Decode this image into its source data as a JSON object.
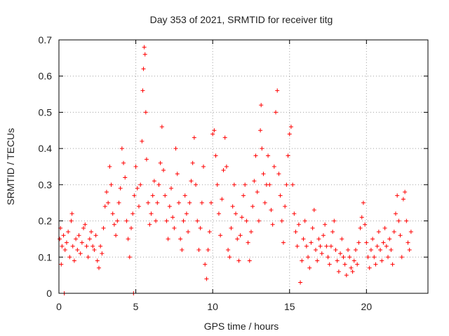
{
  "chart_data": {
    "type": "scatter",
    "title": "Day 353 of 2021, SRMTID for receiver titg",
    "xlabel": "GPS time / hours",
    "ylabel": "SRMTID / TECUs",
    "xlim": [
      0,
      24
    ],
    "ylim": [
      0,
      0.7
    ],
    "xticks": [
      0,
      5,
      10,
      15,
      20
    ],
    "xtick_labels": [
      "0",
      "5",
      "10",
      "15",
      "20"
    ],
    "yticks": [
      0,
      0.1,
      0.2,
      0.3,
      0.4,
      0.5,
      0.6,
      0.7
    ],
    "ytick_labels": [
      "0",
      "0.1",
      "0.2",
      "0.3",
      "0.4",
      "0.5",
      "0.6",
      "0.7"
    ],
    "grid": true,
    "marker": "plus",
    "color": "#ff0000",
    "series": [
      {
        "name": "SRMTID",
        "points": [
          [
            0.05,
            0.15
          ],
          [
            0.1,
            0.18
          ],
          [
            0.15,
            0.08
          ],
          [
            0.2,
            0.13
          ],
          [
            0.3,
            0.16
          ],
          [
            0.35,
            0.0
          ],
          [
            0.4,
            0.12
          ],
          [
            0.5,
            0.14
          ],
          [
            0.6,
            0.17
          ],
          [
            0.7,
            0.1
          ],
          [
            0.8,
            0.2
          ],
          [
            0.85,
            0.22
          ],
          [
            0.9,
            0.13
          ],
          [
            1.0,
            0.09
          ],
          [
            1.1,
            0.15
          ],
          [
            1.2,
            0.12
          ],
          [
            1.3,
            0.16
          ],
          [
            1.4,
            0.11
          ],
          [
            1.5,
            0.14
          ],
          [
            1.6,
            0.18
          ],
          [
            1.7,
            0.19
          ],
          [
            1.8,
            0.13
          ],
          [
            1.9,
            0.1
          ],
          [
            2.0,
            0.15
          ],
          [
            2.1,
            0.17
          ],
          [
            2.2,
            0.13
          ],
          [
            2.3,
            0.12
          ],
          [
            2.4,
            0.16
          ],
          [
            2.5,
            0.09
          ],
          [
            2.6,
            0.07
          ],
          [
            2.7,
            0.13
          ],
          [
            2.8,
            0.11
          ],
          [
            2.9,
            0.18
          ],
          [
            3.0,
            0.24
          ],
          [
            3.1,
            0.28
          ],
          [
            3.2,
            0.25
          ],
          [
            3.3,
            0.35
          ],
          [
            3.4,
            0.3
          ],
          [
            3.5,
            0.22
          ],
          [
            3.6,
            0.19
          ],
          [
            3.7,
            0.16
          ],
          [
            3.8,
            0.2
          ],
          [
            3.9,
            0.25
          ],
          [
            4.0,
            0.29
          ],
          [
            4.1,
            0.4
          ],
          [
            4.2,
            0.36
          ],
          [
            4.3,
            0.32
          ],
          [
            4.4,
            0.2
          ],
          [
            4.5,
            0.15
          ],
          [
            4.6,
            0.1
          ],
          [
            4.7,
            0.18
          ],
          [
            4.8,
            0.22
          ],
          [
            4.85,
            0.0
          ],
          [
            4.9,
            0.27
          ],
          [
            5.0,
            0.35
          ],
          [
            5.1,
            0.29
          ],
          [
            5.2,
            0.24
          ],
          [
            5.3,
            0.3
          ],
          [
            5.4,
            0.42
          ],
          [
            5.45,
            0.56
          ],
          [
            5.5,
            0.62
          ],
          [
            5.55,
            0.68
          ],
          [
            5.6,
            0.66
          ],
          [
            5.65,
            0.5
          ],
          [
            5.7,
            0.37
          ],
          [
            5.8,
            0.25
          ],
          [
            5.9,
            0.19
          ],
          [
            6.0,
            0.22
          ],
          [
            6.1,
            0.27
          ],
          [
            6.2,
            0.31
          ],
          [
            6.3,
            0.2
          ],
          [
            6.4,
            0.25
          ],
          [
            6.5,
            0.3
          ],
          [
            6.6,
            0.36
          ],
          [
            6.7,
            0.46
          ],
          [
            6.8,
            0.34
          ],
          [
            6.9,
            0.27
          ],
          [
            7.0,
            0.2
          ],
          [
            7.1,
            0.15
          ],
          [
            7.2,
            0.24
          ],
          [
            7.3,
            0.29
          ],
          [
            7.4,
            0.21
          ],
          [
            7.5,
            0.18
          ],
          [
            7.6,
            0.4
          ],
          [
            7.7,
            0.33
          ],
          [
            7.8,
            0.25
          ],
          [
            7.9,
            0.15
          ],
          [
            8.0,
            0.12
          ],
          [
            8.1,
            0.2
          ],
          [
            8.2,
            0.27
          ],
          [
            8.3,
            0.22
          ],
          [
            8.4,
            0.17
          ],
          [
            8.5,
            0.25
          ],
          [
            8.6,
            0.31
          ],
          [
            8.7,
            0.36
          ],
          [
            8.8,
            0.43
          ],
          [
            8.9,
            0.3
          ],
          [
            9.0,
            0.2
          ],
          [
            9.1,
            0.12
          ],
          [
            9.2,
            0.18
          ],
          [
            9.3,
            0.25
          ],
          [
            9.4,
            0.35
          ],
          [
            9.5,
            0.08
          ],
          [
            9.6,
            0.04
          ],
          [
            9.7,
            0.12
          ],
          [
            9.8,
            0.17
          ],
          [
            9.9,
            0.25
          ],
          [
            10.0,
            0.44
          ],
          [
            10.1,
            0.45
          ],
          [
            10.2,
            0.38
          ],
          [
            10.3,
            0.3
          ],
          [
            10.4,
            0.22
          ],
          [
            10.5,
            0.16
          ],
          [
            10.6,
            0.26
          ],
          [
            10.7,
            0.34
          ],
          [
            10.8,
            0.43
          ],
          [
            10.9,
            0.35
          ],
          [
            11.0,
            0.12
          ],
          [
            11.1,
            0.1
          ],
          [
            11.2,
            0.18
          ],
          [
            11.3,
            0.24
          ],
          [
            11.4,
            0.3
          ],
          [
            11.5,
            0.22
          ],
          [
            11.6,
            0.15
          ],
          [
            11.7,
            0.09
          ],
          [
            11.8,
            0.16
          ],
          [
            11.9,
            0.21
          ],
          [
            12.0,
            0.27
          ],
          [
            12.1,
            0.3
          ],
          [
            12.2,
            0.2
          ],
          [
            12.3,
            0.14
          ],
          [
            12.4,
            0.09
          ],
          [
            12.5,
            0.17
          ],
          [
            12.6,
            0.24
          ],
          [
            12.7,
            0.31
          ],
          [
            12.8,
            0.38
          ],
          [
            12.9,
            0.28
          ],
          [
            13.0,
            0.2
          ],
          [
            13.1,
            0.45
          ],
          [
            13.15,
            0.52
          ],
          [
            13.2,
            0.4
          ],
          [
            13.3,
            0.33
          ],
          [
            13.4,
            0.25
          ],
          [
            13.5,
            0.3
          ],
          [
            13.6,
            0.38
          ],
          [
            13.7,
            0.3
          ],
          [
            13.8,
            0.23
          ],
          [
            13.9,
            0.19
          ],
          [
            14.0,
            0.35
          ],
          [
            14.1,
            0.5
          ],
          [
            14.2,
            0.56
          ],
          [
            14.3,
            0.33
          ],
          [
            14.4,
            0.27
          ],
          [
            14.5,
            0.2
          ],
          [
            14.6,
            0.14
          ],
          [
            14.7,
            0.24
          ],
          [
            14.8,
            0.3
          ],
          [
            14.9,
            0.38
          ],
          [
            15.0,
            0.44
          ],
          [
            15.1,
            0.46
          ],
          [
            15.2,
            0.3
          ],
          [
            15.3,
            0.22
          ],
          [
            15.4,
            0.17
          ],
          [
            15.5,
            0.13
          ],
          [
            15.6,
            0.19
          ],
          [
            15.7,
            0.03
          ],
          [
            15.8,
            0.09
          ],
          [
            15.9,
            0.15
          ],
          [
            16.0,
            0.2
          ],
          [
            16.1,
            0.13
          ],
          [
            16.2,
            0.1
          ],
          [
            16.3,
            0.07
          ],
          [
            16.4,
            0.14
          ],
          [
            16.5,
            0.18
          ],
          [
            16.6,
            0.23
          ],
          [
            16.7,
            0.12
          ],
          [
            16.8,
            0.09
          ],
          [
            16.9,
            0.15
          ],
          [
            17.0,
            0.13
          ],
          [
            17.1,
            0.11
          ],
          [
            17.2,
            0.16
          ],
          [
            17.3,
            0.19
          ],
          [
            17.4,
            0.13
          ],
          [
            17.5,
            0.1
          ],
          [
            17.6,
            0.08
          ],
          [
            17.7,
            0.13
          ],
          [
            17.8,
            0.17
          ],
          [
            17.9,
            0.2
          ],
          [
            18.0,
            0.12
          ],
          [
            18.1,
            0.09
          ],
          [
            18.2,
            0.06
          ],
          [
            18.3,
            0.11
          ],
          [
            18.4,
            0.15
          ],
          [
            18.5,
            0.1
          ],
          [
            18.6,
            0.08
          ],
          [
            18.7,
            0.05
          ],
          [
            18.8,
            0.12
          ],
          [
            18.9,
            0.1
          ],
          [
            19.0,
            0.07
          ],
          [
            19.1,
            0.06
          ],
          [
            19.2,
            0.09
          ],
          [
            19.3,
            0.12
          ],
          [
            19.4,
            0.08
          ],
          [
            19.5,
            0.14
          ],
          [
            19.6,
            0.18
          ],
          [
            19.7,
            0.21
          ],
          [
            19.8,
            0.25
          ],
          [
            19.9,
            0.19
          ],
          [
            20.0,
            0.14
          ],
          [
            20.1,
            0.1
          ],
          [
            20.2,
            0.07
          ],
          [
            20.3,
            0.12
          ],
          [
            20.4,
            0.15
          ],
          [
            20.5,
            0.1
          ],
          [
            20.6,
            0.08
          ],
          [
            20.7,
            0.13
          ],
          [
            20.8,
            0.17
          ],
          [
            20.9,
            0.12
          ],
          [
            21.0,
            0.09
          ],
          [
            21.1,
            0.14
          ],
          [
            21.2,
            0.18
          ],
          [
            21.3,
            0.13
          ],
          [
            21.4,
            0.1
          ],
          [
            21.5,
            0.15
          ],
          [
            21.6,
            0.12
          ],
          [
            21.7,
            0.08
          ],
          [
            21.8,
            0.17
          ],
          [
            21.9,
            0.22
          ],
          [
            22.0,
            0.27
          ],
          [
            22.1,
            0.2
          ],
          [
            22.2,
            0.16
          ],
          [
            22.3,
            0.1
          ],
          [
            22.4,
            0.26
          ],
          [
            22.5,
            0.28
          ],
          [
            22.6,
            0.2
          ],
          [
            22.7,
            0.14
          ],
          [
            22.8,
            0.12
          ],
          [
            22.9,
            0.17
          ]
        ]
      }
    ]
  }
}
